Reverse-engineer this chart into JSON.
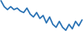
{
  "x": [
    0,
    1,
    2,
    3,
    4,
    5,
    6,
    7,
    8,
    9,
    10,
    11,
    12,
    13,
    14,
    15,
    16,
    17,
    18,
    19,
    20,
    21,
    22,
    23,
    24,
    25
  ],
  "y": [
    42,
    34,
    30,
    34,
    30,
    32,
    28,
    26,
    32,
    24,
    20,
    26,
    18,
    22,
    12,
    20,
    10,
    6,
    14,
    6,
    2,
    10,
    4,
    14,
    8,
    16
  ],
  "line_color": "#2e75b6",
  "background_color": "#ffffff",
  "linewidth": 1.5
}
